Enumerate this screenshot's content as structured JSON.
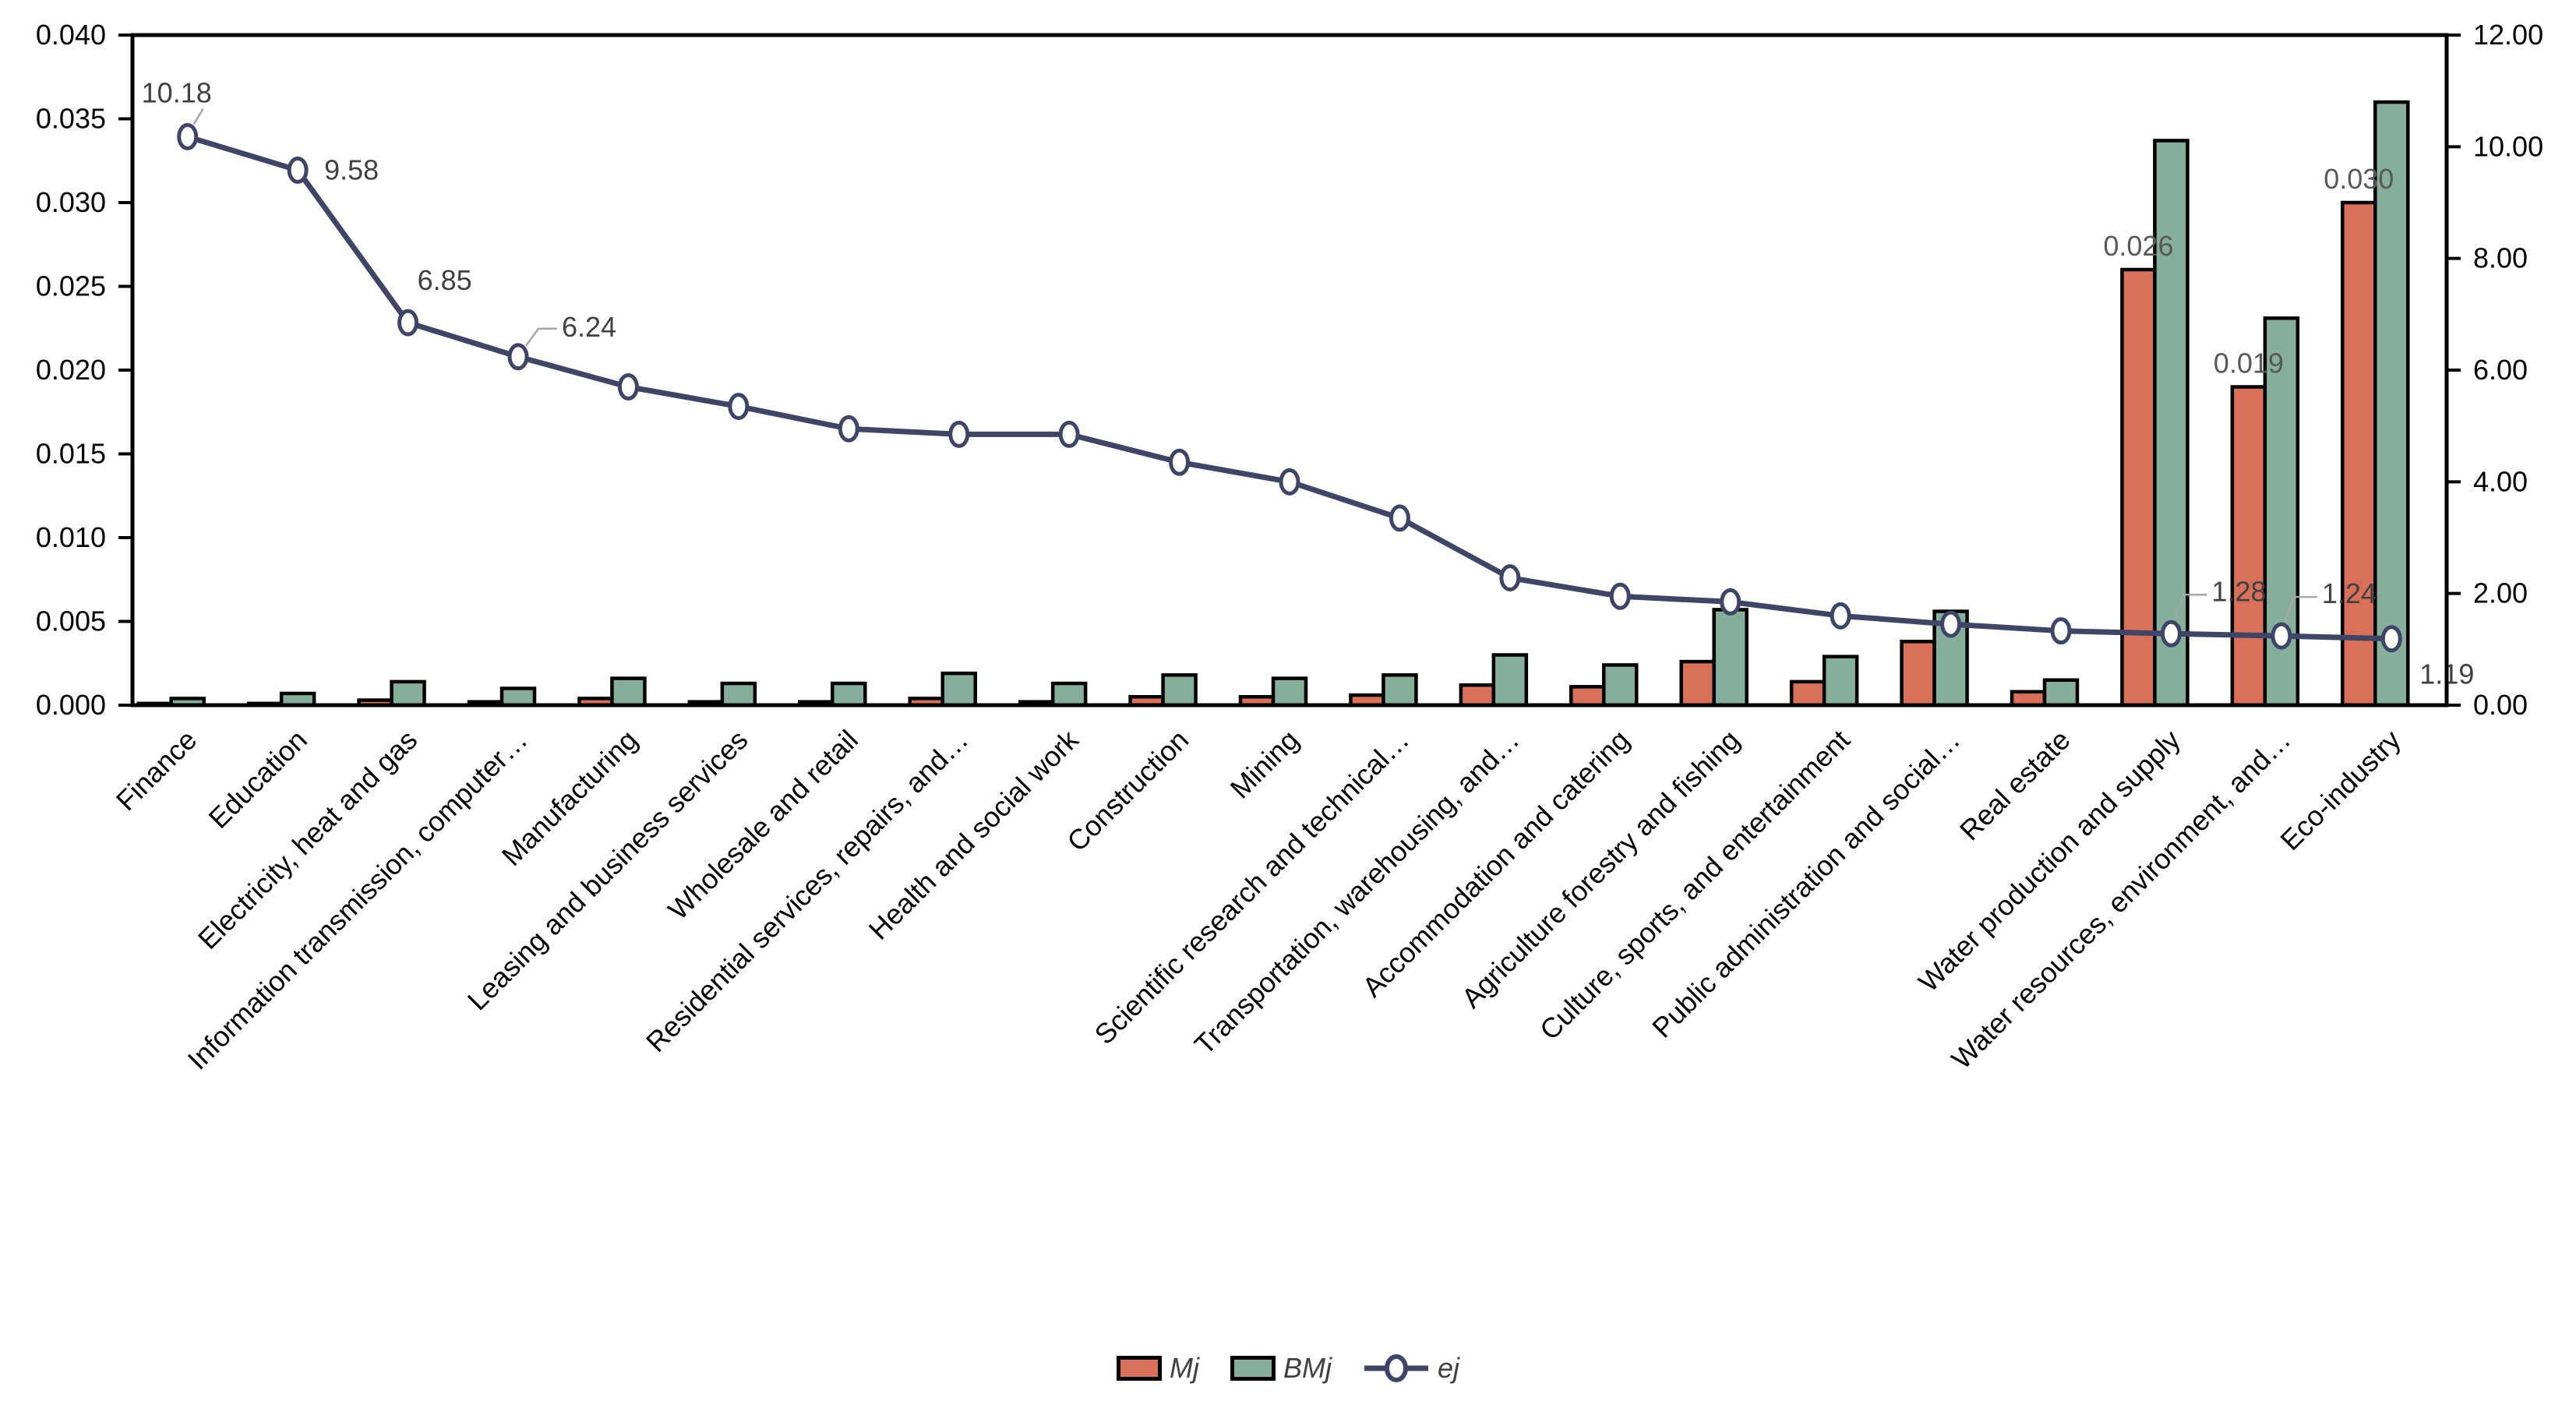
{
  "chart_data": {
    "type": "bar",
    "subtype": "combo-bar-line-dual-axis",
    "title": "",
    "xlabel": "",
    "ylabel": "",
    "grid": false,
    "legend_position": "bottom-center",
    "categories": [
      "Finance",
      "Education",
      "Electricity, heat and gas",
      "Information transmission, computer…",
      "Manufacturing",
      "Leasing and business services",
      "Wholesale and retail",
      "Residential services, repairs, and…",
      "Health and social work",
      "Construction",
      "Mining",
      "Scientific research and technical…",
      "Transportation, warehousing, and…",
      "Accommodation and catering",
      "Agriculture forestry and fishing",
      "Culture, sports, and entertainment",
      "Public administration and social…",
      "Real estate",
      "Water production and supply",
      "Water resources, environment, and…",
      "Eco-industry"
    ],
    "series": [
      {
        "name": "Mj",
        "type": "bar",
        "axis": "left",
        "color": "#D9715A",
        "values": [
          0.0001,
          0.0001,
          0.0003,
          0.0002,
          0.0004,
          0.0002,
          0.0002,
          0.0004,
          0.0002,
          0.0005,
          0.0005,
          0.0006,
          0.0012,
          0.0011,
          0.0026,
          0.0014,
          0.0038,
          0.0008,
          0.026,
          0.019,
          0.03
        ]
      },
      {
        "name": "BMj",
        "type": "bar",
        "axis": "left",
        "color": "#85AE9B",
        "values": [
          0.0004,
          0.0007,
          0.0014,
          0.001,
          0.0016,
          0.0013,
          0.0013,
          0.0019,
          0.0013,
          0.0018,
          0.0016,
          0.0018,
          0.003,
          0.0024,
          0.0057,
          0.0029,
          0.0056,
          0.0015,
          0.0337,
          0.0231,
          0.036
        ]
      },
      {
        "name": "ej",
        "type": "line",
        "axis": "right",
        "color": "#3F4566",
        "marker": "open-circle",
        "values": [
          10.18,
          9.58,
          6.85,
          6.24,
          5.7,
          5.35,
          4.95,
          4.85,
          4.85,
          4.35,
          4.0,
          3.35,
          2.28,
          1.95,
          1.85,
          1.6,
          1.45,
          1.33,
          1.28,
          1.24,
          1.19
        ]
      }
    ],
    "left_axis": {
      "min": 0.0,
      "max": 0.04,
      "step": 0.005,
      "tick_labels": [
        "0.000",
        "0.005",
        "0.010",
        "0.015",
        "0.020",
        "0.025",
        "0.030",
        "0.035",
        "0.040"
      ]
    },
    "right_axis": {
      "min": 0.0,
      "max": 12.0,
      "step": 2.0,
      "tick_labels": [
        "0.00",
        "2.00",
        "4.00",
        "6.00",
        "8.00",
        "10.00",
        "12.00"
      ]
    },
    "line_point_labels": {
      "0": "10.18",
      "1": "9.58",
      "2": "6.85",
      "3": "6.24",
      "18": "1.28",
      "19": "1.24",
      "20": "1.19"
    },
    "bar_point_labels": {
      "18": "0.026",
      "19": "0.019",
      "20": "0.030"
    }
  },
  "legend": {
    "items": [
      {
        "label": "Mj"
      },
      {
        "label": "BMj"
      },
      {
        "label": "ej"
      }
    ]
  },
  "colors": {
    "bar_border": "#000000",
    "data_label": "#595959",
    "axis_text": "#000000",
    "leader_line": "#a6a6a6"
  }
}
